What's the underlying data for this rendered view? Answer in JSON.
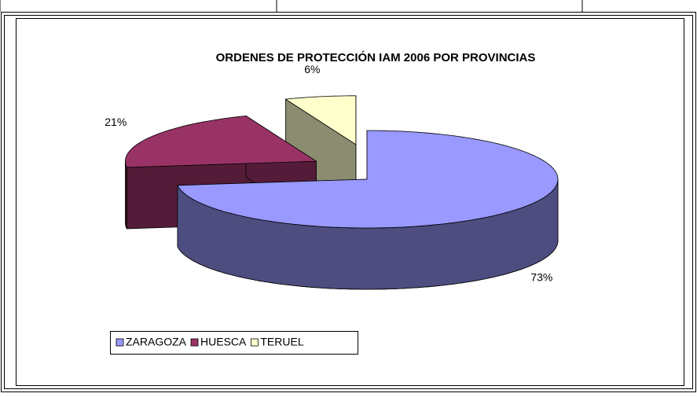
{
  "chart_data": {
    "type": "pie",
    "title": "ORDENES DE PROTECCIÓN IAM 2006 POR PROVINCIAS",
    "categories": [
      "ZARAGOZA",
      "HUESCA",
      "TERUEL"
    ],
    "values": [
      73,
      21,
      6
    ],
    "value_labels": [
      "73%",
      "21%",
      "6%"
    ],
    "colors": [
      "#9999ff",
      "#993366",
      "#ffffcc"
    ],
    "legend": "bottom-left"
  }
}
